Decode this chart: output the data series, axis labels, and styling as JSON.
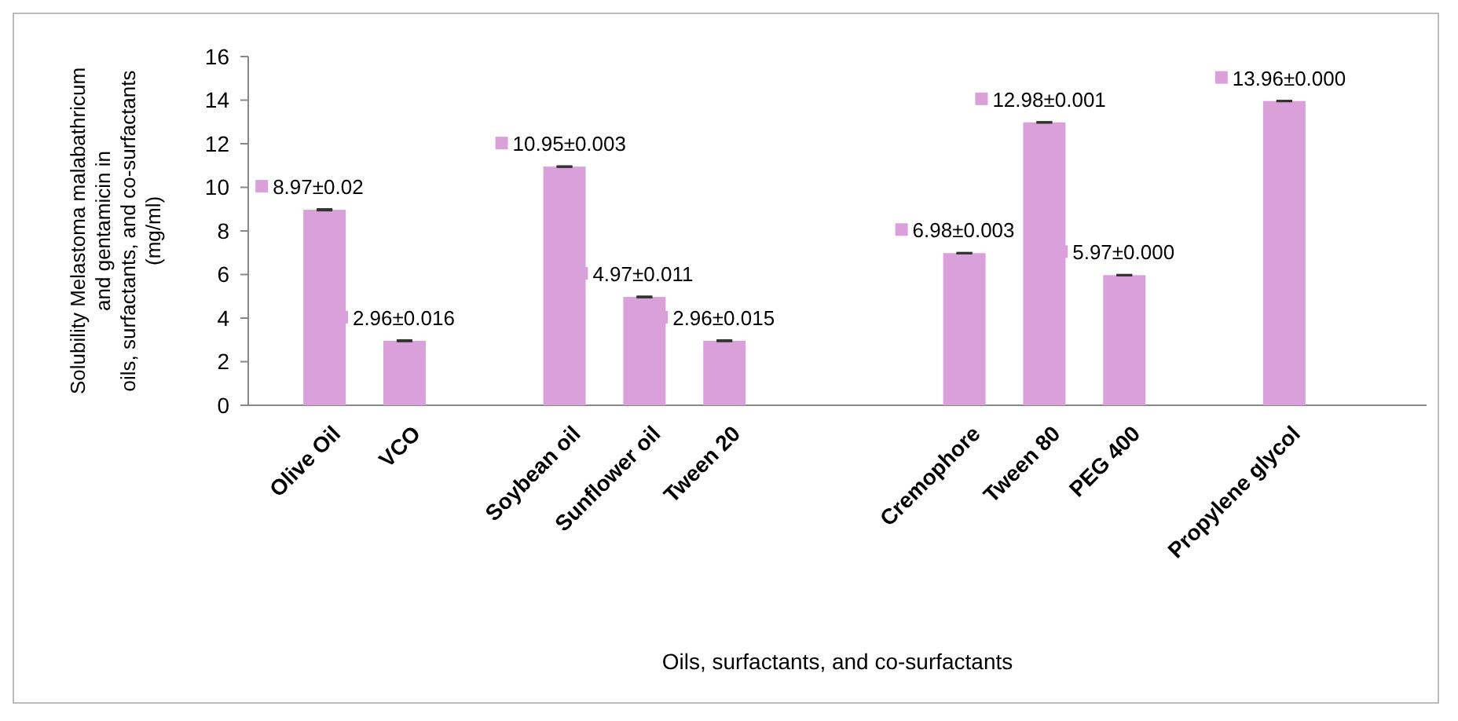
{
  "chart_data": {
    "type": "bar",
    "xlabel": "Oils, surfactants, and co-surfactants",
    "ylabel": "Solubility Melastoma malabathricum\nand gentamicin  in\noils, surfactants, and co-surfactants\n(mg/ml)",
    "categories": [
      "Olive Oil",
      "VCO",
      null,
      "Soybean oil",
      "Sunflower oil",
      "Tween 20",
      null,
      null,
      "Cremophore",
      "Tween 80",
      "PEG 400",
      null,
      "Propylene glycol"
    ],
    "values": [
      8.97,
      2.96,
      null,
      10.95,
      4.97,
      2.96,
      null,
      null,
      6.98,
      12.98,
      5.97,
      null,
      13.96
    ],
    "errors": [
      0.02,
      0.016,
      null,
      0.003,
      0.011,
      0.015,
      null,
      null,
      0.003,
      0.001,
      0.0,
      null,
      0.0
    ],
    "value_labels": [
      "8.97±0.02",
      "2.96±0.016",
      null,
      "10.95±0.003",
      "4.97±0.011",
      "2.96±0.015",
      null,
      null,
      "6.98±0.003",
      "12.98±0.001",
      "5.97±0.000",
      null,
      "13.96±0.000"
    ],
    "color": "#d9a0d9",
    "ylim": [
      0,
      16
    ],
    "yticks": [
      0,
      2,
      4,
      6,
      8,
      10,
      12,
      14,
      16
    ],
    "grid": false
  }
}
